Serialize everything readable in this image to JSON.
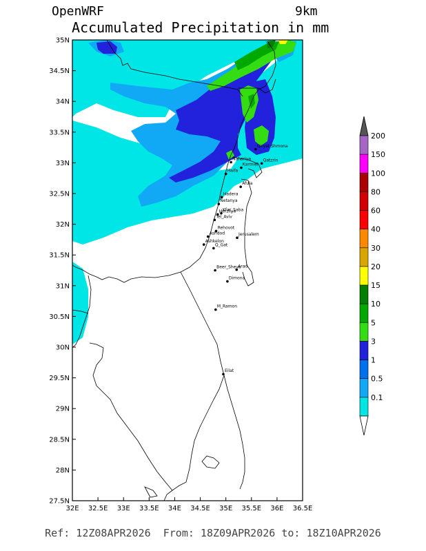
{
  "header": {
    "model": "OpenWRF",
    "resolution": "9km",
    "title": "Accumulated Precipitation in mm"
  },
  "footer": {
    "text": "Ref: 12Z08APR2026  From: 18Z09APR2026 to: 18Z10APR2026"
  },
  "axes": {
    "lon_ticks": [
      "32E",
      "32.5E",
      "33E",
      "33.5E",
      "34E",
      "34.5E",
      "35E",
      "35.5E",
      "36E",
      "36.5E"
    ],
    "lat_ticks": [
      "35N",
      "34.5N",
      "34N",
      "33.5N",
      "33N",
      "32.5N",
      "32N",
      "31.5N",
      "31N",
      "30.5N",
      "30N",
      "29.5N",
      "29N",
      "28.5N",
      "28N",
      "27.5N"
    ]
  },
  "legend": {
    "levels": [
      {
        "label": "200",
        "color": "#a566c8"
      },
      {
        "label": "150",
        "color": "#ff00ff"
      },
      {
        "label": "100",
        "color": "#aa0000"
      },
      {
        "label": "80",
        "color": "#d40000"
      },
      {
        "label": "60",
        "color": "#ff0000"
      },
      {
        "label": "40",
        "color": "#ff8800"
      },
      {
        "label": "30",
        "color": "#d9a500"
      },
      {
        "label": "20",
        "color": "#ffff00"
      },
      {
        "label": "15",
        "color": "#007f00"
      },
      {
        "label": "10",
        "color": "#00a800"
      },
      {
        "label": "5",
        "color": "#33dd11"
      },
      {
        "label": "3",
        "color": "#2222dd"
      },
      {
        "label": "1",
        "color": "#0070ee"
      },
      {
        "label": "0.5",
        "color": "#11a8f5"
      },
      {
        "label": "0.1",
        "color": "#00e5e5"
      }
    ]
  },
  "cities": [
    {
      "name": "Qiryat Shmona",
      "lon": 35.58,
      "lat": 33.22
    },
    {
      "name": "Nahariya",
      "lon": 35.1,
      "lat": 33.01
    },
    {
      "name": "Karmiel",
      "lon": 35.3,
      "lat": 32.92
    },
    {
      "name": "Qatzrin",
      "lon": 35.7,
      "lat": 32.99
    },
    {
      "name": "Haifa",
      "lon": 35.0,
      "lat": 32.82
    },
    {
      "name": "Afula",
      "lon": 35.29,
      "lat": 32.61
    },
    {
      "name": "Hadera",
      "lon": 34.92,
      "lat": 32.44
    },
    {
      "name": "Netanya",
      "lon": 34.86,
      "lat": 32.33
    },
    {
      "name": "Kfar_Saba",
      "lon": 34.91,
      "lat": 32.18
    },
    {
      "name": "Herzliya",
      "lon": 34.84,
      "lat": 32.16
    },
    {
      "name": "Tel_Aviv",
      "lon": 34.78,
      "lat": 32.07
    },
    {
      "name": "Rehovot",
      "lon": 34.81,
      "lat": 31.89
    },
    {
      "name": "Ashdod",
      "lon": 34.65,
      "lat": 31.8
    },
    {
      "name": "Jerusalem",
      "lon": 35.22,
      "lat": 31.78
    },
    {
      "name": "Ashkelon",
      "lon": 34.57,
      "lat": 31.67
    },
    {
      "name": "Q_Gat",
      "lon": 34.76,
      "lat": 31.61
    },
    {
      "name": "Beer_Sheva",
      "lon": 34.79,
      "lat": 31.25
    },
    {
      "name": "Arad",
      "lon": 35.21,
      "lat": 31.26
    },
    {
      "name": "Dimona",
      "lon": 35.03,
      "lat": 31.07
    },
    {
      "name": "M_Ramon",
      "lon": 34.8,
      "lat": 30.61
    },
    {
      "name": "Eilat",
      "lon": 34.95,
      "lat": 29.56
    }
  ]
}
